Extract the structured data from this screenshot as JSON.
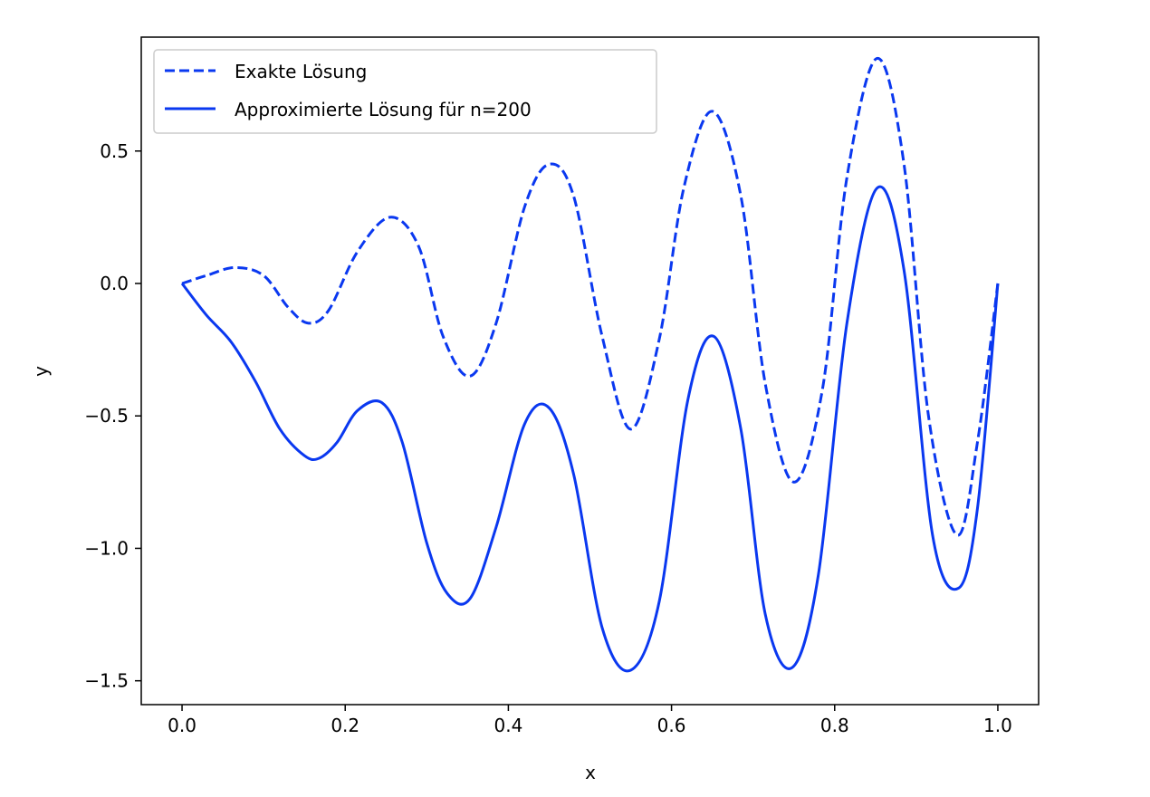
{
  "chart_data": {
    "type": "line",
    "title": "",
    "xlabel": "x",
    "ylabel": "y",
    "xlim": [
      -0.05,
      1.05
    ],
    "ylim": [
      -1.59,
      0.93
    ],
    "grid": false,
    "legend_position": "top-left",
    "x_ticks": [
      {
        "value": 0.0,
        "label": "0.0"
      },
      {
        "value": 0.2,
        "label": "0.2"
      },
      {
        "value": 0.4,
        "label": "0.4"
      },
      {
        "value": 0.6,
        "label": "0.6"
      },
      {
        "value": 0.8,
        "label": "0.8"
      },
      {
        "value": 1.0,
        "label": "1.0"
      }
    ],
    "y_ticks": [
      {
        "value": 0.5,
        "label": "0.5"
      },
      {
        "value": 0.0,
        "label": "0.0"
      },
      {
        "value": -0.5,
        "label": "−0.5"
      },
      {
        "value": -1.0,
        "label": "−1.0"
      },
      {
        "value": -1.5,
        "label": "−1.5"
      }
    ],
    "series": [
      {
        "name": "Exakte Lösung",
        "style": "dashed",
        "color": "#0a38f0",
        "x": [
          0.0,
          0.03,
          0.065,
          0.1,
          0.13,
          0.155,
          0.18,
          0.215,
          0.255,
          0.29,
          0.32,
          0.353,
          0.385,
          0.42,
          0.45,
          0.48,
          0.515,
          0.55,
          0.585,
          0.615,
          0.65,
          0.685,
          0.715,
          0.75,
          0.785,
          0.815,
          0.852,
          0.885,
          0.915,
          0.95,
          0.975,
          1.0
        ],
        "y": [
          0.0,
          0.03,
          0.06,
          0.03,
          -0.09,
          -0.15,
          -0.1,
          0.12,
          0.25,
          0.14,
          -0.2,
          -0.35,
          -0.15,
          0.29,
          0.45,
          0.33,
          -0.2,
          -0.55,
          -0.21,
          0.36,
          0.65,
          0.33,
          -0.38,
          -0.75,
          -0.4,
          0.4,
          0.85,
          0.45,
          -0.5,
          -0.95,
          -0.6,
          0.0
        ]
      },
      {
        "name": "Approximierte Lösung für n=200",
        "style": "solid",
        "color": "#0a38f0",
        "x": [
          0.0,
          0.03,
          0.06,
          0.09,
          0.12,
          0.15,
          0.168,
          0.19,
          0.215,
          0.245,
          0.27,
          0.3,
          0.325,
          0.353,
          0.385,
          0.42,
          0.45,
          0.48,
          0.515,
          0.55,
          0.585,
          0.62,
          0.652,
          0.685,
          0.715,
          0.748,
          0.78,
          0.815,
          0.852,
          0.885,
          0.92,
          0.952,
          0.975,
          1.0
        ],
        "y": [
          0.0,
          -0.12,
          -0.22,
          -0.37,
          -0.55,
          -0.65,
          -0.66,
          -0.6,
          -0.48,
          -0.45,
          -0.6,
          -0.98,
          -1.17,
          -1.19,
          -0.92,
          -0.53,
          -0.47,
          -0.72,
          -1.3,
          -1.46,
          -1.2,
          -0.44,
          -0.2,
          -0.55,
          -1.25,
          -1.45,
          -1.1,
          -0.15,
          0.36,
          0.05,
          -0.95,
          -1.15,
          -0.85,
          0.0
        ]
      }
    ]
  }
}
